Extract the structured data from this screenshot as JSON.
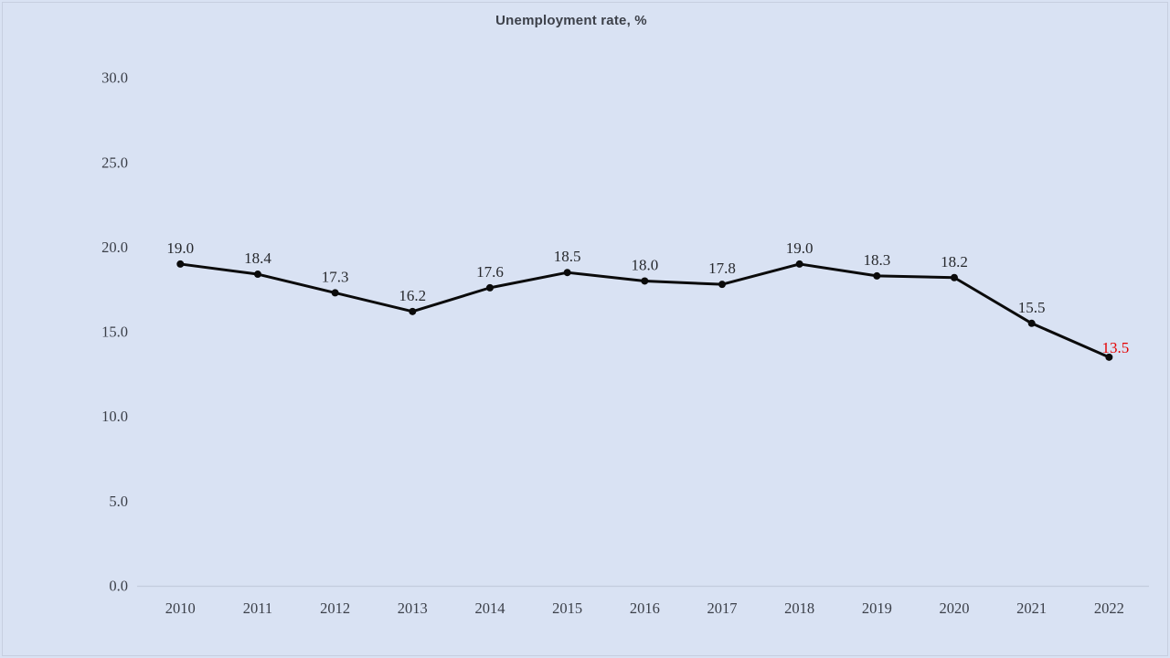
{
  "window": {
    "background_color": "#d9e2f3",
    "border_color": "#c7cfe0"
  },
  "chart_data": {
    "type": "line",
    "title": "Unemployment rate, %",
    "categories": [
      "2010",
      "2011",
      "2012",
      "2013",
      "2014",
      "2015",
      "2016",
      "2017",
      "2018",
      "2019",
      "2020",
      "2021",
      "2022"
    ],
    "series": [
      {
        "name": "Unemployment rate",
        "values": [
          19.0,
          18.4,
          17.3,
          16.2,
          17.6,
          18.5,
          18.0,
          17.8,
          19.0,
          18.3,
          18.2,
          15.5,
          13.5
        ]
      }
    ],
    "point_labels": [
      "19.0",
      "18.4",
      "17.3",
      "16.2",
      "17.6",
      "18.5",
      "18.0",
      "17.8",
      "19.0",
      "18.3",
      "18.2",
      "15.5",
      "13.5"
    ],
    "xlabel": "",
    "ylabel": "",
    "ylim": [
      0,
      30
    ],
    "ytick_step": 5,
    "ytick_labels": [
      "0.0",
      "5.0",
      "10.0",
      "15.0",
      "20.0",
      "25.0",
      "30.0"
    ],
    "grid": "off",
    "legend": "none",
    "colors": {
      "line": "#0b0b0b",
      "marker": "#0b0b0b",
      "point_label": "#26282c",
      "last_point_label": "#e50000",
      "axis_line": "#c3ccdd",
      "tick_label": "#3b3f48",
      "title": "#3d414a"
    }
  }
}
